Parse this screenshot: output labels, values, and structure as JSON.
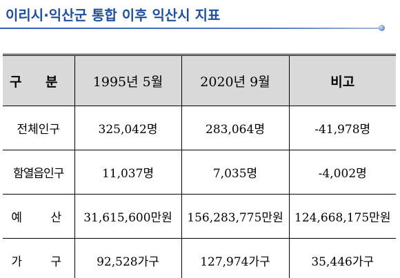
{
  "title": "이리시·익산군 통합 이후 익산시 지표",
  "colors": {
    "title": "#1f4e9a",
    "header_bg": "#d9d9d9",
    "border": "#000000"
  },
  "table": {
    "headers": [
      "구 분",
      "1995년 5월",
      "2020년 9월",
      "비고"
    ],
    "rows": [
      {
        "label": "전체인구",
        "y1995": "325,042명",
        "y2020": "283,064명",
        "note": "-41,978명"
      },
      {
        "label": "함열읍인구",
        "y1995": "11,037명",
        "y2020": "7,035명",
        "note": "-4,002명"
      },
      {
        "label": "예 산",
        "y1995": "31,615,600만원",
        "y2020": "156,283,775만원",
        "note": "124,668,175만원"
      },
      {
        "label": "가 구",
        "y1995": "92,528가구",
        "y2020": "127,974가구",
        "note": "35,446가구"
      }
    ]
  }
}
